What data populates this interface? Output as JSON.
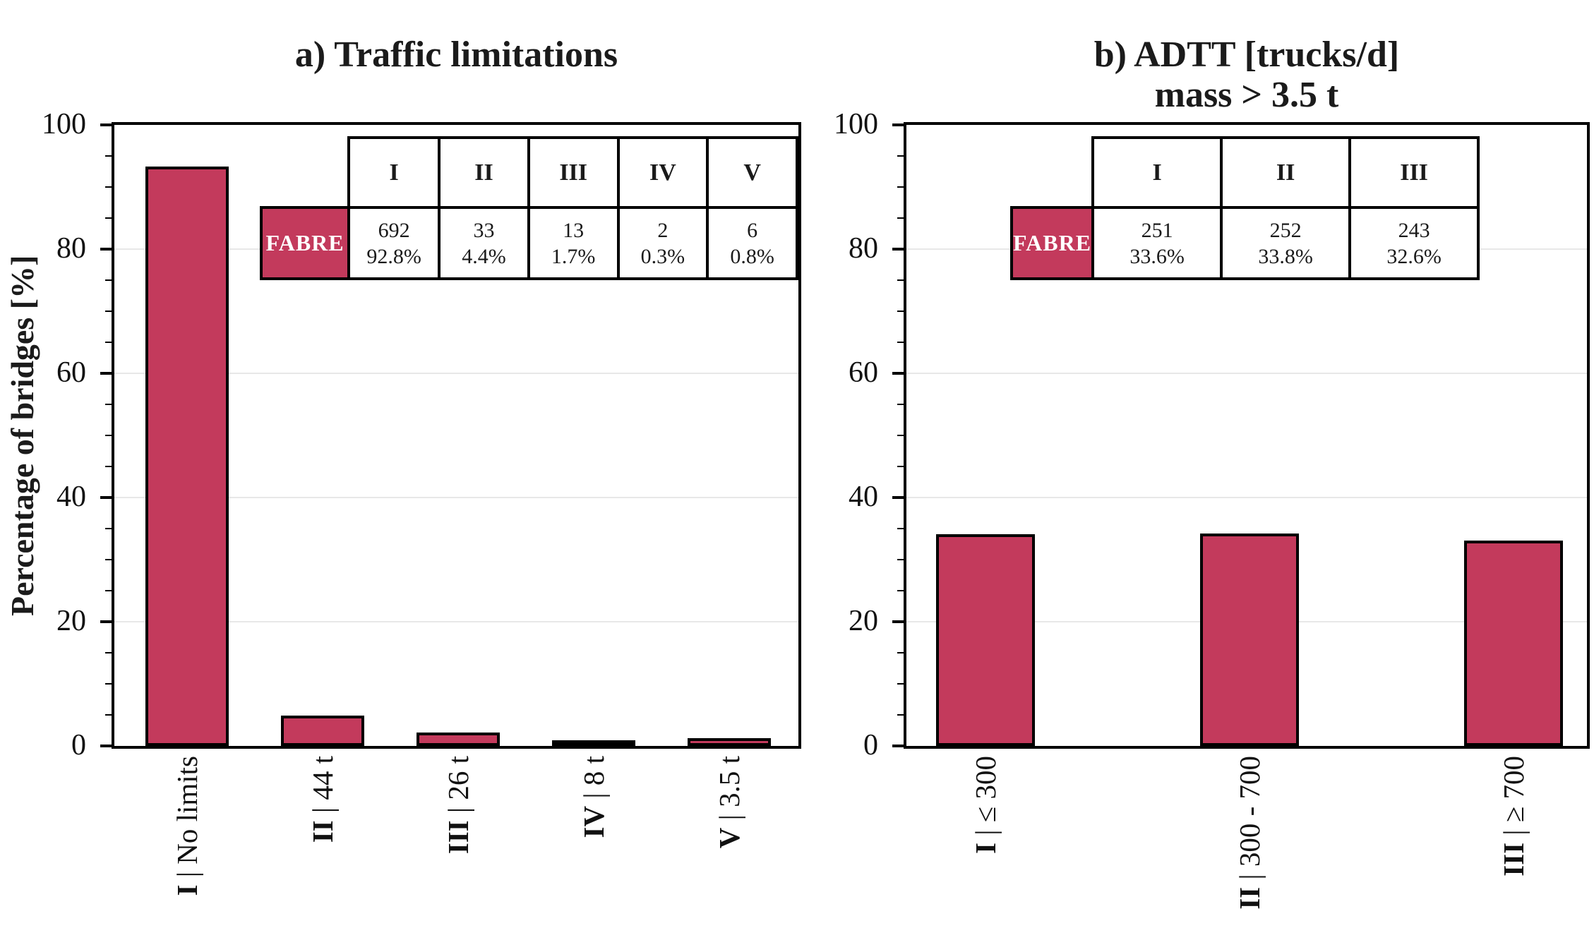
{
  "colors": {
    "bar_fill": "#C33A5C",
    "bar_border": "#000000",
    "fabre_bg": "#C33A5C",
    "fabre_text": "#ffffff",
    "gridline": "#e8e8e8",
    "axis": "#000000",
    "text": "#1a1a1a"
  },
  "chart_data": [
    {
      "type": "bar",
      "panel": "a",
      "title": "a) Traffic limitations",
      "title_lines": [
        "a) Traffic limitations",
        ""
      ],
      "ylabel": "Percentage of bridges [%]",
      "ylim": [
        0,
        100
      ],
      "yticks": [
        0,
        20,
        40,
        60,
        80,
        100
      ],
      "minor_tick_step": 5,
      "grid": "horizontal-major",
      "legend_position": "upper right inside plot",
      "categories": [
        "I | No limits",
        "II | 44 t",
        "III | 26 t",
        "IV | 8 t",
        "V | 3.5 t"
      ],
      "category_parts": [
        {
          "numeral": "I",
          "rest": " | No limits"
        },
        {
          "numeral": "II",
          "rest": " | 44 t"
        },
        {
          "numeral": "III",
          "rest": " | 26 t"
        },
        {
          "numeral": "IV",
          "rest": " | 8 t"
        },
        {
          "numeral": "V",
          "rest": " | 3.5 t"
        }
      ],
      "values": [
        92.8,
        4.4,
        1.7,
        0.3,
        0.8
      ],
      "counts": [
        692,
        33,
        13,
        2,
        6
      ],
      "legend_table": {
        "row_label": "FABRE",
        "columns": [
          "I",
          "II",
          "III",
          "IV",
          "V"
        ],
        "cells": [
          {
            "count": "692",
            "percent": "92.8%"
          },
          {
            "count": "33",
            "percent": "4.4%"
          },
          {
            "count": "13",
            "percent": "1.7%"
          },
          {
            "count": "2",
            "percent": "0.3%"
          },
          {
            "count": "6",
            "percent": "0.8%"
          }
        ]
      }
    },
    {
      "type": "bar",
      "panel": "b",
      "title": "b) ADTT [trucks/d] mass > 3.5 t",
      "title_lines": [
        "b) ADTT [trucks/d]",
        "mass > 3.5 t"
      ],
      "ylabel": "",
      "ylim": [
        0,
        100
      ],
      "yticks": [
        0,
        20,
        40,
        60,
        80,
        100
      ],
      "minor_tick_step": 5,
      "grid": "horizontal-major",
      "legend_position": "upper right inside plot",
      "categories": [
        "I | ≤ 300",
        "II | 300 - 700",
        "III | ≥ 700"
      ],
      "category_parts": [
        {
          "numeral": "I",
          "rest": " | ≤ 300"
        },
        {
          "numeral": "II",
          "rest": " | 300 - 700"
        },
        {
          "numeral": "III",
          "rest": " | ≥ 700"
        }
      ],
      "values": [
        33.6,
        33.8,
        32.6
      ],
      "counts": [
        251,
        252,
        243
      ],
      "legend_table": {
        "row_label": "FABRE",
        "columns": [
          "I",
          "II",
          "III"
        ],
        "cells": [
          {
            "count": "251",
            "percent": "33.6%"
          },
          {
            "count": "252",
            "percent": "33.8%"
          },
          {
            "count": "243",
            "percent": "32.6%"
          }
        ]
      }
    }
  ]
}
